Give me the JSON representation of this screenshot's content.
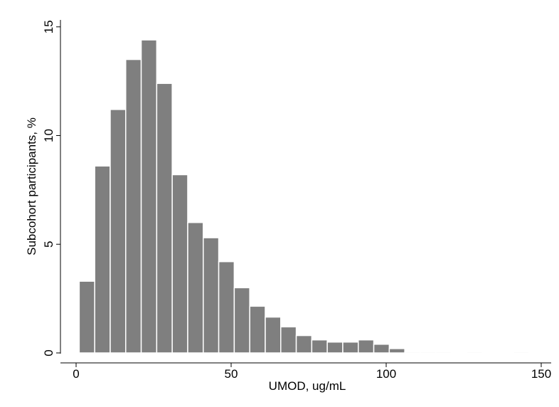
{
  "chart_data": {
    "type": "bar",
    "title": "",
    "xlabel": "UMOD, ug/mL",
    "ylabel": "Subcohort participants, %",
    "xlim": [
      -5,
      152
    ],
    "ylim": [
      0,
      15.5
    ],
    "xticks": [
      0,
      50,
      100,
      150
    ],
    "yticks": [
      0,
      5,
      10,
      15
    ],
    "grid": false,
    "bar_color": "#7f7f7f",
    "bin_width": 5,
    "bins": [
      {
        "x_start": 1,
        "value": 3.3
      },
      {
        "x_start": 6,
        "value": 8.6
      },
      {
        "x_start": 11,
        "value": 11.2
      },
      {
        "x_start": 16,
        "value": 13.5
      },
      {
        "x_start": 21,
        "value": 14.4
      },
      {
        "x_start": 26,
        "value": 12.4
      },
      {
        "x_start": 31,
        "value": 8.2
      },
      {
        "x_start": 36,
        "value": 6.0
      },
      {
        "x_start": 41,
        "value": 5.3
      },
      {
        "x_start": 46,
        "value": 4.2
      },
      {
        "x_start": 51,
        "value": 3.0
      },
      {
        "x_start": 56,
        "value": 2.15
      },
      {
        "x_start": 61,
        "value": 1.65
      },
      {
        "x_start": 66,
        "value": 1.2
      },
      {
        "x_start": 71,
        "value": 0.8
      },
      {
        "x_start": 76,
        "value": 0.6
      },
      {
        "x_start": 81,
        "value": 0.5
      },
      {
        "x_start": 86,
        "value": 0.5
      },
      {
        "x_start": 91,
        "value": 0.6
      },
      {
        "x_start": 96,
        "value": 0.4
      },
      {
        "x_start": 101,
        "value": 0.2
      },
      {
        "x_start": 106,
        "value": 0.05
      },
      {
        "x_start": 111,
        "value": 0.05
      },
      {
        "x_start": 116,
        "value": 0.05
      },
      {
        "x_start": 126,
        "value": 0.05
      },
      {
        "x_start": 141,
        "value": 0.05
      }
    ]
  }
}
